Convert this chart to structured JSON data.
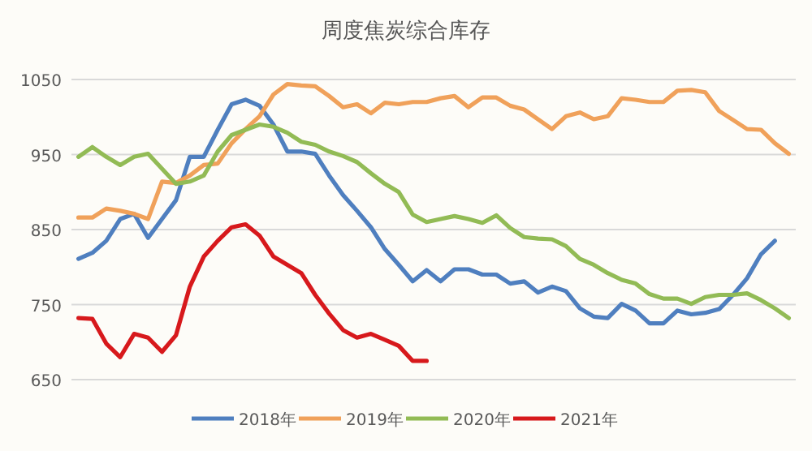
{
  "chart_data": {
    "type": "line",
    "title": "周度焦炭综合库存",
    "categories": [
      null,
      null,
      null,
      null,
      null,
      null,
      null,
      null,
      null,
      null,
      null,
      null,
      null,
      null,
      null,
      null,
      null,
      null,
      null,
      null,
      null,
      null,
      null,
      null,
      null,
      null,
      null,
      null,
      null,
      null,
      null,
      null,
      null,
      null,
      null,
      null,
      null,
      null,
      null,
      null,
      null,
      null,
      null,
      null,
      null,
      null,
      null,
      null,
      null,
      null,
      null,
      null
    ],
    "series": [
      {
        "name": "2018年",
        "color": "#4f7fbf",
        "values": [
          811,
          819,
          835,
          864,
          871,
          839,
          864,
          889,
          947,
          947,
          983,
          1017,
          1023,
          1015,
          990,
          954,
          954,
          951,
          922,
          896,
          875,
          853,
          824,
          803,
          781,
          796,
          781,
          797,
          797,
          790,
          790,
          778,
          781,
          766,
          774,
          768,
          745,
          734,
          732,
          751,
          742,
          725,
          725,
          742,
          737,
          739,
          744,
          763,
          785,
          817,
          835,
          null
        ]
      },
      {
        "name": "2019年",
        "color": "#f0a15a",
        "values": [
          866,
          866,
          878,
          875,
          871,
          864,
          914,
          912,
          922,
          936,
          938,
          965,
          984,
          1001,
          1030,
          1044,
          1042,
          1041,
          1028,
          1013,
          1017,
          1005,
          1019,
          1017,
          1020,
          1020,
          1025,
          1028,
          1013,
          1026,
          1026,
          1015,
          1010,
          997,
          984,
          1001,
          1006,
          997,
          1001,
          1025,
          1023,
          1020,
          1020,
          1035,
          1036,
          1033,
          1008,
          996,
          984,
          983,
          965,
          951
        ]
      },
      {
        "name": "2020年",
        "color": "#92bb55",
        "values": [
          947,
          960,
          947,
          936,
          947,
          951,
          931,
          911,
          914,
          922,
          954,
          976,
          983,
          990,
          987,
          979,
          967,
          963,
          954,
          948,
          940,
          925,
          911,
          900,
          870,
          860,
          864,
          868,
          864,
          859,
          869,
          852,
          840,
          838,
          837,
          828,
          811,
          803,
          792,
          783,
          778,
          764,
          758,
          758,
          751,
          760,
          763,
          763,
          765,
          756,
          745,
          732
        ]
      },
      {
        "name": "2021年",
        "color": "#d7191c",
        "values": [
          732,
          731,
          698,
          680,
          711,
          706,
          687,
          709,
          774,
          814,
          835,
          853,
          857,
          842,
          814,
          803,
          792,
          763,
          738,
          716,
          706,
          711,
          703,
          695,
          675,
          675,
          null,
          null,
          null,
          null,
          null,
          null,
          null,
          null,
          null,
          null,
          null,
          null,
          null,
          null,
          null,
          null,
          null,
          null,
          null,
          null,
          null,
          null,
          null,
          null,
          null,
          null
        ]
      }
    ],
    "ylim": [
      650,
      1050
    ],
    "yticks": [
      650,
      750,
      850,
      950,
      1050
    ],
    "grid": "y",
    "legend": "bottom",
    "marker": "none",
    "line_style": "solid"
  }
}
